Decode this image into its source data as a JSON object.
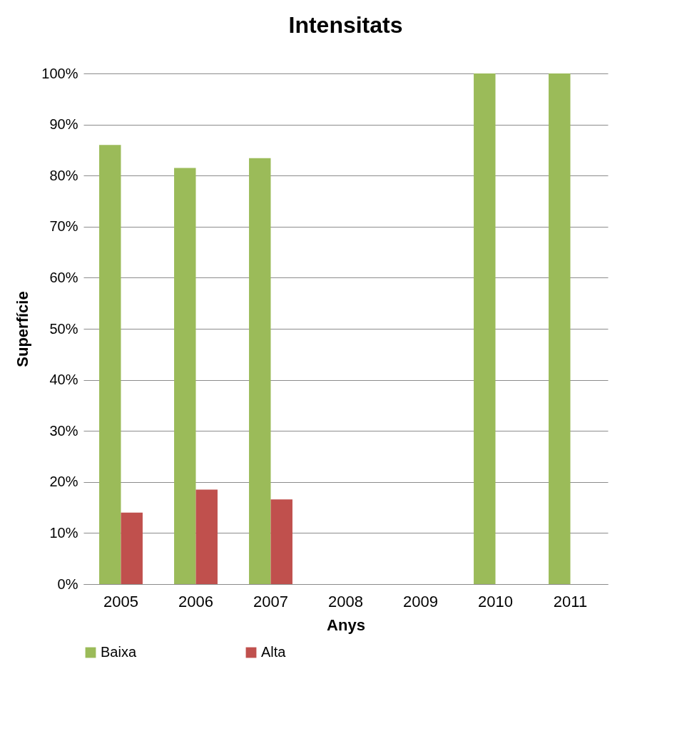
{
  "chart_data": {
    "type": "bar",
    "title": "Intensitats",
    "xlabel": "Anys",
    "ylabel": "Superfície",
    "categories": [
      "2005",
      "2006",
      "2007",
      "2008",
      "2009",
      "2010",
      "2011"
    ],
    "series": [
      {
        "name": "Baixa",
        "color": "#9bbb59",
        "values": [
          86,
          81.5,
          83.4,
          null,
          null,
          100,
          100
        ]
      },
      {
        "name": "Alta",
        "color": "#c0504d",
        "values": [
          14,
          18.5,
          16.6,
          null,
          null,
          0,
          0
        ]
      }
    ],
    "ylim": [
      0,
      100
    ],
    "yticks": [
      {
        "value": 0,
        "label": "0%"
      },
      {
        "value": 10,
        "label": "10%"
      },
      {
        "value": 20,
        "label": "20%"
      },
      {
        "value": 30,
        "label": "30%"
      },
      {
        "value": 40,
        "label": "40%"
      },
      {
        "value": 50,
        "label": "50%"
      },
      {
        "value": 60,
        "label": "60%"
      },
      {
        "value": 70,
        "label": "70%"
      },
      {
        "value": 80,
        "label": "80%"
      },
      {
        "value": 90,
        "label": "90%"
      },
      {
        "value": 100,
        "label": "100%"
      }
    ],
    "grid": "y",
    "legend": "bottom"
  }
}
